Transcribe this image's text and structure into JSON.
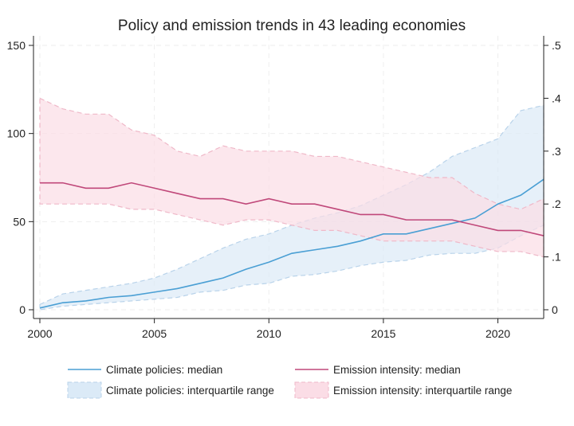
{
  "chart_data": {
    "type": "line",
    "title": "Policy and emission trends in 43 leading economies",
    "xlabel": "",
    "ylabel_left": "",
    "ylabel_right": "",
    "x": [
      2000,
      2001,
      2002,
      2003,
      2004,
      2005,
      2006,
      2007,
      2008,
      2009,
      2010,
      2011,
      2012,
      2013,
      2014,
      2015,
      2016,
      2017,
      2018,
      2019,
      2020,
      2021,
      2022
    ],
    "xlim": [
      2000,
      2022
    ],
    "x_ticks": [
      "2000",
      "2005",
      "2010",
      "2015",
      "2020"
    ],
    "ylim_left": [
      0,
      150
    ],
    "y_ticks_left": [
      "0",
      "50",
      "100",
      "150"
    ],
    "ylim_right": [
      0,
      0.5
    ],
    "y_ticks_right": [
      "0",
      ".1",
      ".2",
      ".3",
      ".4",
      ".5"
    ],
    "grid": true,
    "legend_position": "bottom",
    "series": [
      {
        "name": "Climate policies: median",
        "axis": "left",
        "kind": "line",
        "color": "#4a9fd4",
        "values": [
          1,
          4,
          5,
          7,
          8,
          10,
          12,
          15,
          18,
          23,
          27,
          32,
          34,
          36,
          39,
          43,
          43,
          46,
          49,
          52,
          60,
          65,
          74
        ]
      },
      {
        "name": "Climate policies: interquartile range",
        "axis": "left",
        "kind": "band",
        "color": "#dbeaf7",
        "lower": [
          0,
          2,
          3,
          4,
          5,
          6,
          7,
          10,
          11,
          14,
          15,
          19,
          20,
          22,
          25,
          27,
          28,
          31,
          32,
          32,
          35,
          42,
          48
        ],
        "upper": [
          3,
          9,
          11,
          13,
          15,
          18,
          23,
          29,
          35,
          40,
          43,
          48,
          52,
          55,
          59,
          65,
          71,
          78,
          87,
          92,
          97,
          113,
          116
        ]
      },
      {
        "name": "Emission intensity: median",
        "axis": "right",
        "kind": "line",
        "color": "#c0487a",
        "values": [
          0.24,
          0.24,
          0.23,
          0.23,
          0.24,
          0.23,
          0.22,
          0.21,
          0.21,
          0.2,
          0.21,
          0.2,
          0.2,
          0.19,
          0.18,
          0.18,
          0.17,
          0.17,
          0.17,
          0.16,
          0.15,
          0.15,
          0.14
        ]
      },
      {
        "name": "Emission intensity: interquartile range",
        "axis": "right",
        "kind": "band",
        "color": "#fbdde6",
        "lower": [
          0.2,
          0.2,
          0.2,
          0.2,
          0.19,
          0.19,
          0.18,
          0.17,
          0.16,
          0.17,
          0.17,
          0.16,
          0.15,
          0.15,
          0.14,
          0.13,
          0.13,
          0.13,
          0.13,
          0.12,
          0.11,
          0.11,
          0.1
        ],
        "upper": [
          0.4,
          0.38,
          0.37,
          0.37,
          0.34,
          0.33,
          0.3,
          0.29,
          0.31,
          0.3,
          0.3,
          0.3,
          0.29,
          0.29,
          0.28,
          0.27,
          0.26,
          0.25,
          0.25,
          0.22,
          0.2,
          0.19,
          0.21
        ]
      }
    ]
  }
}
